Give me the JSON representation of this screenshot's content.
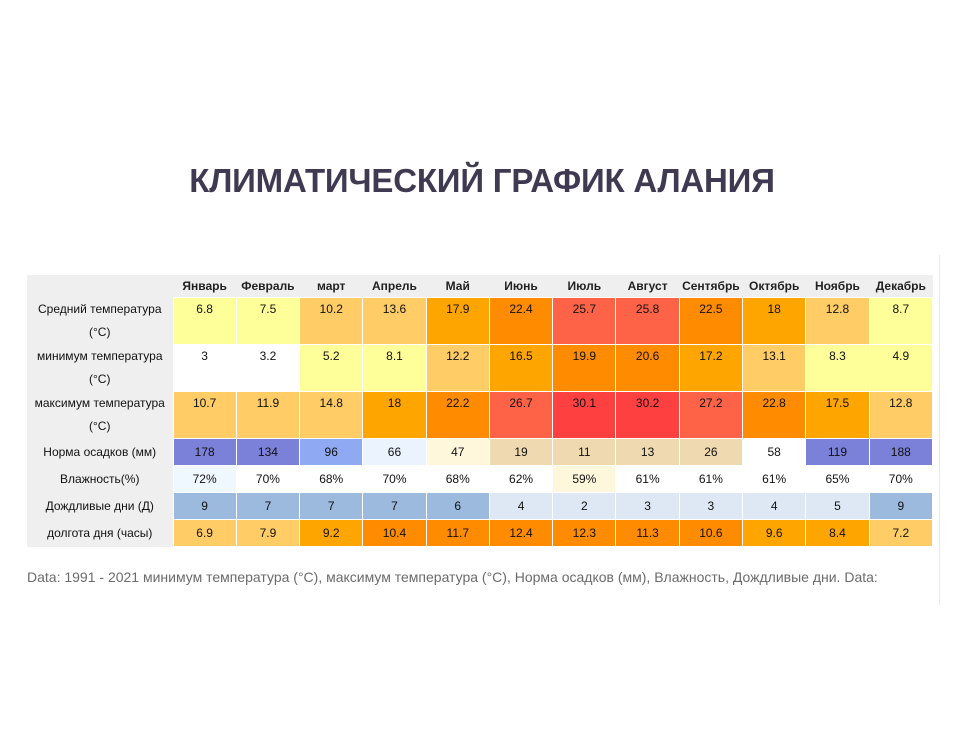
{
  "title": "КЛИМАТИЧЕСКИЙ ГРАФИК АЛАНИЯ",
  "table": {
    "months": [
      "Январь",
      "Февраль",
      "март",
      "Апрель",
      "Май",
      "Июнь",
      "Июль",
      "Август",
      "Сентябрь",
      "Октябрь",
      "Ноябрь",
      "Декабрь"
    ],
    "rows": [
      {
        "label_line1": "Средний температура",
        "label_line2": "(°C)",
        "values": [
          "6.8",
          "7.5",
          "10.2",
          "13.6",
          "17.9",
          "22.4",
          "25.7",
          "25.8",
          "22.5",
          "18",
          "12.8",
          "8.7"
        ],
        "colors": [
          "#ffff99",
          "#ffff99",
          "#ffcc66",
          "#ffcc66",
          "#ffa500",
          "#ff8c00",
          "#ff6347",
          "#ff6347",
          "#ff8c00",
          "#ffa500",
          "#ffcc66",
          "#ffff99"
        ]
      },
      {
        "label_line1": "минимум температура",
        "label_line2": "(°C)",
        "values": [
          "3",
          "3.2",
          "5.2",
          "8.1",
          "12.2",
          "16.5",
          "19.9",
          "20.6",
          "17.2",
          "13.1",
          "8.3",
          "4.9"
        ],
        "colors": [
          "#ffffff",
          "#ffffff",
          "#ffff99",
          "#ffff99",
          "#ffcc66",
          "#ffa500",
          "#ff8c00",
          "#ff8c00",
          "#ffa500",
          "#ffcc66",
          "#ffff99",
          "#ffff99"
        ]
      },
      {
        "label_line1": "максимум температура",
        "label_line2": "(°C)",
        "values": [
          "10.7",
          "11.9",
          "14.8",
          "18",
          "22.2",
          "26.7",
          "30.1",
          "30.2",
          "27.2",
          "22.8",
          "17.5",
          "12.8"
        ],
        "colors": [
          "#ffcc66",
          "#ffcc66",
          "#ffcc66",
          "#ffa500",
          "#ff8c00",
          "#ff6347",
          "#ff4040",
          "#ff4040",
          "#ff6347",
          "#ff8c00",
          "#ffa500",
          "#ffcc66"
        ]
      },
      {
        "label_line1": "Норма осадков (мм)",
        "values": [
          "178",
          "134",
          "96",
          "66",
          "47",
          "19",
          "11",
          "13",
          "26",
          "58",
          "119",
          "188"
        ],
        "colors": [
          "#7b80d8",
          "#7b80d8",
          "#8faaf2",
          "#eaf3ff",
          "#fff7dc",
          "#efd9b0",
          "#efd9b0",
          "#efd9b0",
          "#efd9b0",
          "#ffffff",
          "#7b80d8",
          "#7b80d8"
        ]
      },
      {
        "label_line1": "Влажность(%)",
        "values": [
          "72%",
          "70%",
          "68%",
          "70%",
          "68%",
          "62%",
          "59%",
          "61%",
          "61%",
          "61%",
          "65%",
          "70%"
        ],
        "colors": [
          "#f0f8ff",
          "#ffffff",
          "#ffffff",
          "#ffffff",
          "#ffffff",
          "#ffffff",
          "#fff7dc",
          "#ffffff",
          "#ffffff",
          "#ffffff",
          "#ffffff",
          "#ffffff"
        ]
      },
      {
        "label_line1": "Дождливые дни (Д)",
        "values": [
          "9",
          "7",
          "7",
          "7",
          "6",
          "4",
          "2",
          "3",
          "3",
          "4",
          "5",
          "9"
        ],
        "colors": [
          "#9cb9de",
          "#9cb9de",
          "#9cb9de",
          "#9cb9de",
          "#9cb9de",
          "#dde8f4",
          "#dde8f4",
          "#dde8f4",
          "#dde8f4",
          "#dde8f4",
          "#dde8f4",
          "#9cb9de"
        ]
      },
      {
        "label_line1": "долгота дня (часы)",
        "values": [
          "6.9",
          "7.9",
          "9.2",
          "10.4",
          "11.7",
          "12.4",
          "12.3",
          "11.3",
          "10.6",
          "9.6",
          "8.4",
          "7.2"
        ],
        "colors": [
          "#ffcc66",
          "#ffcc66",
          "#ffa500",
          "#ff8c00",
          "#ff8c00",
          "#ff8c00",
          "#ff8c00",
          "#ff8c00",
          "#ff8c00",
          "#ffa500",
          "#ffa500",
          "#ffcc66"
        ]
      }
    ]
  },
  "footnote": "Data: 1991 - 2021 минимум температура (°C), максимум температура (°C), Норма осадков (мм), Влажность, Дождливые дни. Data:"
}
